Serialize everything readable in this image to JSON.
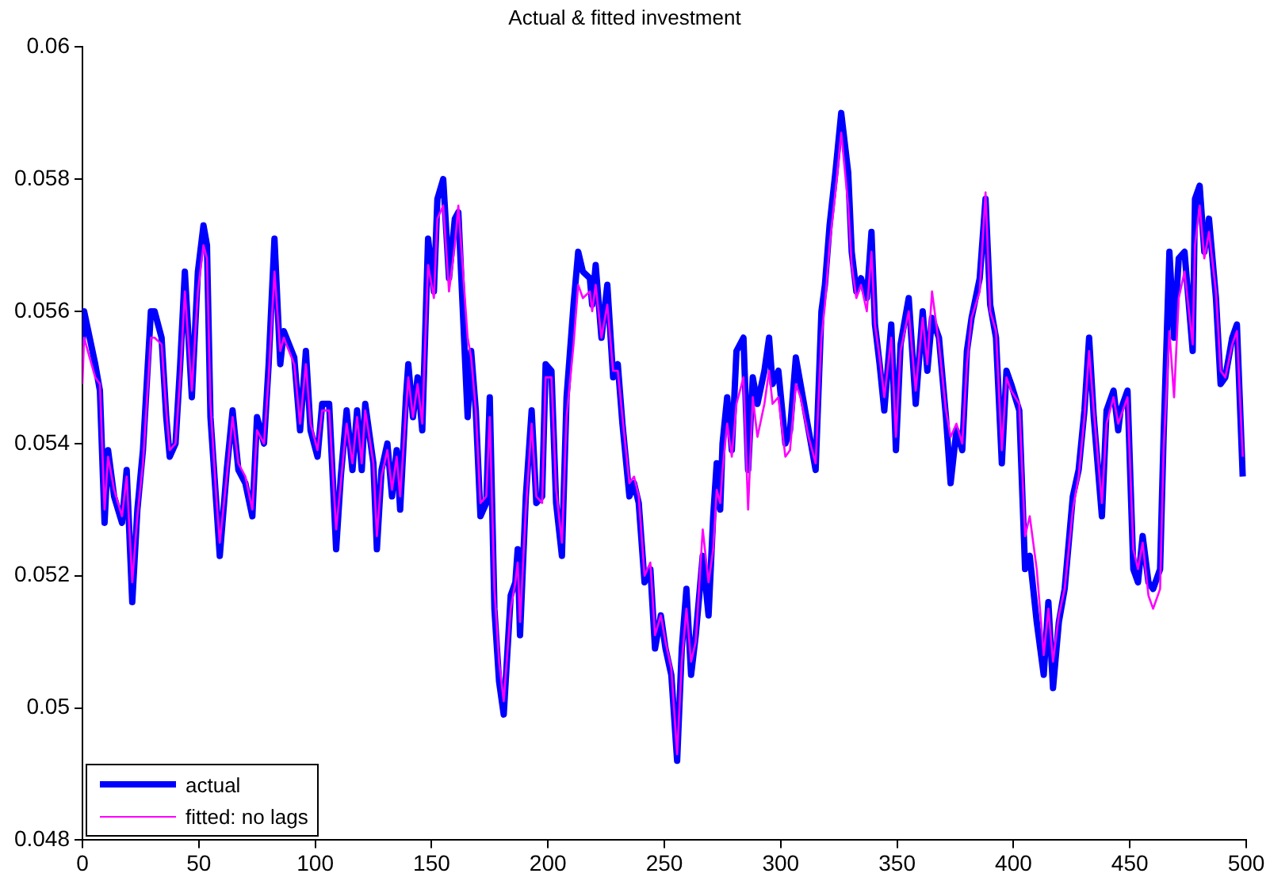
{
  "chart_data": {
    "type": "line",
    "title": "Actual & fitted investment",
    "x": [
      0,
      0.7,
      5.5,
      7.5,
      9.5,
      11,
      13.6,
      17,
      19,
      21.4,
      23.6,
      26,
      29.4,
      31,
      34,
      36,
      37.5,
      40,
      42,
      44,
      47,
      49.6,
      52,
      53.5,
      55,
      57.5,
      59,
      62,
      64.5,
      67,
      70,
      73,
      75,
      78,
      80,
      82.5,
      85,
      86.5,
      91,
      93.5,
      96,
      98,
      101,
      103,
      106,
      109,
      111,
      113.5,
      116,
      118,
      120,
      121.5,
      125,
      126.5,
      128.5,
      131,
      133,
      135,
      136.5,
      139,
      140,
      142,
      144,
      146,
      148.5,
      151,
      152.5,
      155,
      157.5,
      160,
      161.5,
      165.5,
      167,
      169,
      171,
      173.5,
      175,
      177,
      179,
      181,
      184,
      186,
      187,
      188,
      190.5,
      193,
      195,
      197.5,
      199,
      201.5,
      203.5,
      206,
      208,
      211,
      213,
      215,
      218,
      219,
      220.5,
      223,
      225.5,
      228,
      230,
      232,
      235,
      237,
      239,
      241.5,
      244,
      246,
      248.5,
      250.5,
      253,
      255.5,
      257.5,
      259.5,
      261.5,
      263.5,
      266.5,
      269,
      271,
      272.5,
      274,
      275,
      277,
      279,
      281,
      284,
      286,
      288,
      290,
      293,
      295,
      296.5,
      299,
      302,
      304,
      306.5,
      308.5,
      312,
      315,
      317.5,
      319,
      321,
      323.5,
      326,
      329,
      330.5,
      332.5,
      334.5,
      337,
      339,
      340.5,
      342.5,
      344.5,
      347.5,
      349.5,
      351.5,
      355,
      358,
      361,
      363,
      365,
      368,
      371,
      373,
      375.5,
      378,
      380,
      382,
      385.5,
      388,
      390,
      392.5,
      395,
      397,
      399,
      402.5,
      405,
      407,
      410,
      413,
      415,
      417,
      419.5,
      422,
      425.5,
      428,
      430.5,
      432.5,
      434.5,
      438,
      440,
      443,
      445,
      446,
      449,
      451.5,
      453.5,
      455.5,
      458,
      460,
      463,
      464.5,
      467,
      469,
      471,
      473.5,
      477,
      478,
      480,
      482,
      484,
      487,
      489,
      491,
      494,
      496,
      498.5
    ],
    "series": [
      {
        "name": "actual",
        "color": "#0000ff",
        "values": [
          0.0555,
          0.056,
          0.0552,
          0.0548,
          0.0528,
          0.0539,
          0.0532,
          0.0528,
          0.0536,
          0.0516,
          0.053,
          0.0539,
          0.056,
          0.056,
          0.0556,
          0.0544,
          0.0538,
          0.054,
          0.0552,
          0.0566,
          0.0547,
          0.0566,
          0.0573,
          0.057,
          0.0544,
          0.0531,
          0.0523,
          0.0536,
          0.0545,
          0.0536,
          0.0534,
          0.0529,
          0.0544,
          0.054,
          0.0552,
          0.0571,
          0.0552,
          0.0557,
          0.0553,
          0.0542,
          0.0554,
          0.0542,
          0.0538,
          0.0546,
          0.0546,
          0.0524,
          0.0535,
          0.0545,
          0.0536,
          0.0545,
          0.0536,
          0.0546,
          0.0537,
          0.0524,
          0.0536,
          0.054,
          0.0532,
          0.0539,
          0.053,
          0.0547,
          0.0552,
          0.0544,
          0.055,
          0.0542,
          0.0571,
          0.0563,
          0.0577,
          0.058,
          0.0565,
          0.0574,
          0.0575,
          0.0544,
          0.0554,
          0.0545,
          0.0529,
          0.0531,
          0.0547,
          0.0515,
          0.0504,
          0.0499,
          0.0517,
          0.0519,
          0.0524,
          0.0511,
          0.0532,
          0.0545,
          0.0531,
          0.0532,
          0.0552,
          0.0551,
          0.0531,
          0.0523,
          0.0547,
          0.0561,
          0.0569,
          0.0566,
          0.0565,
          0.0561,
          0.0567,
          0.0556,
          0.0564,
          0.055,
          0.0552,
          0.0543,
          0.0532,
          0.0534,
          0.0531,
          0.0519,
          0.0521,
          0.0509,
          0.0514,
          0.0509,
          0.0505,
          0.0492,
          0.0509,
          0.0518,
          0.0505,
          0.0511,
          0.0523,
          0.0514,
          0.0529,
          0.0537,
          0.053,
          0.054,
          0.0547,
          0.0539,
          0.0554,
          0.0556,
          0.0536,
          0.055,
          0.0546,
          0.0551,
          0.0556,
          0.0549,
          0.0551,
          0.054,
          0.0542,
          0.0553,
          0.0549,
          0.0542,
          0.0536,
          0.056,
          0.0564,
          0.0573,
          0.0581,
          0.059,
          0.0581,
          0.0569,
          0.0563,
          0.0565,
          0.0562,
          0.0572,
          0.0558,
          0.0552,
          0.0545,
          0.0558,
          0.0539,
          0.0555,
          0.0562,
          0.0546,
          0.056,
          0.0551,
          0.0559,
          0.0556,
          0.0544,
          0.0534,
          0.0542,
          0.0539,
          0.0554,
          0.0559,
          0.0565,
          0.0577,
          0.0561,
          0.0556,
          0.0537,
          0.0551,
          0.0549,
          0.0545,
          0.0521,
          0.0523,
          0.0513,
          0.0505,
          0.0516,
          0.0503,
          0.0513,
          0.0518,
          0.0532,
          0.0536,
          0.0545,
          0.0556,
          0.0544,
          0.0529,
          0.0545,
          0.0548,
          0.0542,
          0.0545,
          0.0548,
          0.0521,
          0.0519,
          0.0526,
          0.0519,
          0.0518,
          0.0521,
          0.0541,
          0.0569,
          0.0556,
          0.0568,
          0.0569,
          0.0554,
          0.0577,
          0.0579,
          0.0569,
          0.0574,
          0.0562,
          0.0549,
          0.055,
          0.0556,
          0.0558,
          0.0535
        ]
      },
      {
        "name": "fitted: no lags",
        "color": "#ff00ff",
        "values": [
          0.0549,
          0.0556,
          0.055,
          0.0549,
          0.053,
          0.0538,
          0.0533,
          0.0529,
          0.0535,
          0.0519,
          0.0529,
          0.0537,
          0.0556,
          0.0556,
          0.0555,
          0.0545,
          0.0539,
          0.054,
          0.055,
          0.0563,
          0.0548,
          0.0563,
          0.057,
          0.0568,
          0.0546,
          0.0532,
          0.0525,
          0.0535,
          0.0544,
          0.0537,
          0.0535,
          0.053,
          0.0542,
          0.054,
          0.055,
          0.0566,
          0.0554,
          0.0556,
          0.0552,
          0.0543,
          0.0552,
          0.0543,
          0.0539,
          0.0545,
          0.0545,
          0.0527,
          0.0534,
          0.0543,
          0.0537,
          0.0544,
          0.0537,
          0.0545,
          0.0537,
          0.0526,
          0.0535,
          0.0539,
          0.0533,
          0.0538,
          0.0532,
          0.0545,
          0.055,
          0.0544,
          0.0549,
          0.0543,
          0.0567,
          0.0562,
          0.0574,
          0.0576,
          0.0563,
          0.057,
          0.0576,
          0.0556,
          0.0553,
          0.0545,
          0.0531,
          0.0532,
          0.0544,
          0.0518,
          0.0507,
          0.0501,
          0.0515,
          0.0519,
          0.0522,
          0.0513,
          0.053,
          0.0543,
          0.0532,
          0.0531,
          0.055,
          0.055,
          0.0533,
          0.0525,
          0.0544,
          0.0555,
          0.0564,
          0.0562,
          0.0563,
          0.056,
          0.0564,
          0.0556,
          0.0561,
          0.0551,
          0.0551,
          0.0544,
          0.0534,
          0.0535,
          0.0532,
          0.052,
          0.0522,
          0.0511,
          0.0514,
          0.051,
          0.0506,
          0.0493,
          0.0507,
          0.0515,
          0.0507,
          0.051,
          0.0527,
          0.0519,
          0.0524,
          0.0533,
          0.0531,
          0.0536,
          0.0543,
          0.0538,
          0.0546,
          0.055,
          0.053,
          0.0547,
          0.0541,
          0.0546,
          0.0551,
          0.0546,
          0.0547,
          0.0538,
          0.0539,
          0.0549,
          0.0547,
          0.0541,
          0.0537,
          0.0556,
          0.0561,
          0.057,
          0.0578,
          0.0587,
          0.0576,
          0.0567,
          0.0562,
          0.0564,
          0.056,
          0.0569,
          0.0558,
          0.0553,
          0.0547,
          0.0556,
          0.0541,
          0.0554,
          0.056,
          0.0548,
          0.0559,
          0.0552,
          0.0563,
          0.0555,
          0.0545,
          0.0541,
          0.0543,
          0.054,
          0.0552,
          0.0559,
          0.0563,
          0.0578,
          0.056,
          0.0557,
          0.0539,
          0.055,
          0.0548,
          0.0546,
          0.0526,
          0.0529,
          0.0521,
          0.0508,
          0.0515,
          0.0507,
          0.0514,
          0.0518,
          0.053,
          0.0535,
          0.0544,
          0.0554,
          0.0545,
          0.0531,
          0.0543,
          0.0547,
          0.0543,
          0.0544,
          0.0547,
          0.0524,
          0.0521,
          0.0525,
          0.0517,
          0.0515,
          0.0518,
          0.0539,
          0.0557,
          0.0547,
          0.0562,
          0.0566,
          0.0555,
          0.057,
          0.0576,
          0.0568,
          0.0572,
          0.0563,
          0.0551,
          0.055,
          0.0555,
          0.0557,
          0.0538
        ]
      }
    ],
    "xlim": [
      0,
      500
    ],
    "xticks": [
      0,
      50,
      100,
      150,
      200,
      250,
      300,
      350,
      400,
      450,
      500
    ],
    "ylim": [
      0.048,
      0.06
    ],
    "yticks": [
      0.048,
      0.05,
      0.052,
      0.054,
      0.056,
      0.058,
      0.06
    ],
    "grid": false,
    "legend": "bottom left"
  }
}
